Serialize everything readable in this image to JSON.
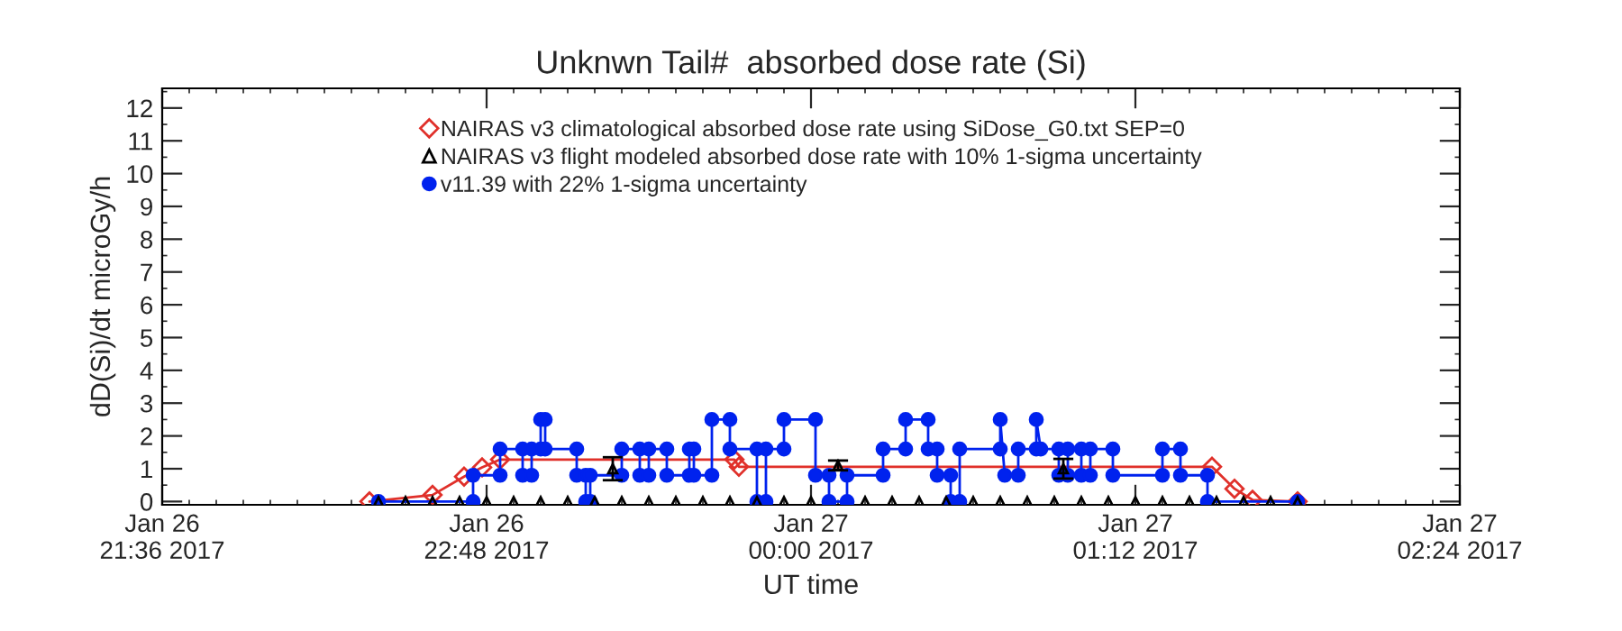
{
  "chart_data": {
    "type": "line",
    "title": "Unknwn Tail#  absorbed dose rate (Si)",
    "xlabel": "UT time",
    "ylabel": "dD(Si)/dt microGy/h",
    "xlim": [
      "2017-01-26T21:36",
      "2017-01-27T02:24"
    ],
    "xticks": [
      {
        "value": "2017-01-26T21:36",
        "label": "Jan 26\n21:36 2017"
      },
      {
        "value": "2017-01-26T22:48",
        "label": "Jan 26\n22:48 2017"
      },
      {
        "value": "2017-01-27T00:00",
        "label": "Jan 27\n00:00 2017"
      },
      {
        "value": "2017-01-27T01:12",
        "label": "Jan 27\n01:12 2017"
      },
      {
        "value": "2017-01-27T02:24",
        "label": "Jan 27\n02:24 2017"
      }
    ],
    "ylim": [
      -0.1,
      12.6
    ],
    "yticks": [
      0,
      1,
      2,
      3,
      4,
      5,
      6,
      7,
      8,
      9,
      10,
      11,
      12
    ],
    "grid": false,
    "legend": "top",
    "series": [
      {
        "name": "NAIRAS v3 climatological absorbed dose rate using SiDose_G0.txt SEP=0",
        "color": "#e0302a",
        "marker": "diamond",
        "line_style": "solid",
        "x": [
          "2017-01-26T22:22",
          "2017-01-26T22:36",
          "2017-01-26T22:43",
          "2017-01-26T22:47",
          "2017-01-26T22:51",
          "2017-01-26T23:43",
          "2017-01-26T23:44",
          "2017-01-27T01:29",
          "2017-01-27T01:34",
          "2017-01-27T01:38",
          "2017-01-27T01:48"
        ],
        "values": [
          0,
          0.2,
          0.76,
          1.04,
          1.28,
          1.28,
          1.06,
          1.06,
          0.39,
          0.05,
          0
        ]
      },
      {
        "name": "NAIRAS v3 flight modeled absorbed dose rate with 10% 1-sigma uncertainty",
        "color": "#000000",
        "marker": "triangle",
        "type": "scatter",
        "x": [
          "2017-01-26T22:24",
          "2017-01-26T22:30",
          "2017-01-26T22:36",
          "2017-01-26T22:42",
          "2017-01-26T22:48",
          "2017-01-26T22:54",
          "2017-01-26T23:00",
          "2017-01-26T23:06",
          "2017-01-26T23:12",
          "2017-01-26T23:16",
          "2017-01-26T23:18",
          "2017-01-26T23:24",
          "2017-01-26T23:30",
          "2017-01-26T23:36",
          "2017-01-26T23:42",
          "2017-01-26T23:48",
          "2017-01-26T23:54",
          "2017-01-27T00:00",
          "2017-01-27T00:06",
          "2017-01-27T00:12",
          "2017-01-27T00:18",
          "2017-01-27T00:24",
          "2017-01-27T00:30",
          "2017-01-27T00:36",
          "2017-01-27T00:42",
          "2017-01-27T00:48",
          "2017-01-27T00:54",
          "2017-01-27T00:56",
          "2017-01-27T01:00",
          "2017-01-27T01:06",
          "2017-01-27T01:12",
          "2017-01-27T01:18",
          "2017-01-27T01:24",
          "2017-01-27T01:30",
          "2017-01-27T01:36",
          "2017-01-27T01:42",
          "2017-01-27T01:48"
        ],
        "values": [
          0,
          0,
          0,
          0,
          0,
          0,
          0,
          0,
          0,
          1.0,
          0,
          0,
          0,
          0,
          0,
          0,
          0,
          0,
          1.1,
          0,
          0,
          0,
          0,
          0,
          0,
          0,
          0,
          1.0,
          0,
          0,
          0,
          0,
          0,
          0,
          0,
          0,
          0
        ],
        "errors": [
          null,
          null,
          null,
          null,
          null,
          null,
          null,
          null,
          null,
          0.35,
          null,
          null,
          null,
          null,
          null,
          null,
          null,
          null,
          0.15,
          null,
          null,
          null,
          null,
          null,
          null,
          null,
          null,
          0.3,
          null,
          null,
          null,
          null,
          null,
          null,
          null,
          null,
          null
        ]
      },
      {
        "name": "v11.39 with 22% 1-sigma uncertainty",
        "color": "#0022ee",
        "marker": "circle",
        "line_style": "solid",
        "x": [
          "2017-01-26T22:24",
          "2017-01-26T22:45",
          "2017-01-26T22:45",
          "2017-01-26T22:51",
          "2017-01-26T22:51",
          "2017-01-26T22:56",
          "2017-01-26T22:56",
          "2017-01-26T22:58",
          "2017-01-26T22:58",
          "2017-01-26T23:00",
          "2017-01-26T23:00",
          "2017-01-26T23:01",
          "2017-01-26T23:01",
          "2017-01-26T23:08",
          "2017-01-26T23:08",
          "2017-01-26T23:10",
          "2017-01-26T23:10",
          "2017-01-26T23:11",
          "2017-01-26T23:11",
          "2017-01-26T23:18",
          "2017-01-26T23:18",
          "2017-01-26T23:22",
          "2017-01-26T23:22",
          "2017-01-26T23:24",
          "2017-01-26T23:24",
          "2017-01-26T23:28",
          "2017-01-26T23:28",
          "2017-01-26T23:33",
          "2017-01-26T23:33",
          "2017-01-26T23:34",
          "2017-01-26T23:34",
          "2017-01-26T23:38",
          "2017-01-26T23:38",
          "2017-01-26T23:42",
          "2017-01-26T23:42",
          "2017-01-26T23:48",
          "2017-01-26T23:48",
          "2017-01-26T23:50",
          "2017-01-26T23:50",
          "2017-01-26T23:54",
          "2017-01-26T23:54",
          "2017-01-27T00:01",
          "2017-01-27T00:01",
          "2017-01-27T00:04",
          "2017-01-27T00:04",
          "2017-01-27T00:08",
          "2017-01-27T00:08",
          "2017-01-27T00:16",
          "2017-01-27T00:16",
          "2017-01-27T00:21",
          "2017-01-27T00:21",
          "2017-01-27T00:26",
          "2017-01-27T00:26",
          "2017-01-27T00:28",
          "2017-01-27T00:28",
          "2017-01-27T00:31",
          "2017-01-27T00:31",
          "2017-01-27T00:33",
          "2017-01-27T00:33",
          "2017-01-27T00:42",
          "2017-01-27T00:42",
          "2017-01-27T00:43",
          "2017-01-27T00:46",
          "2017-01-27T00:46",
          "2017-01-27T00:50",
          "2017-01-27T00:50",
          "2017-01-27T00:51",
          "2017-01-27T00:55",
          "2017-01-27T00:55",
          "2017-01-27T00:57",
          "2017-01-27T00:57",
          "2017-01-27T01:00",
          "2017-01-27T01:00",
          "2017-01-27T01:02",
          "2017-01-27T01:02",
          "2017-01-27T01:07",
          "2017-01-27T01:07",
          "2017-01-27T01:18",
          "2017-01-27T01:18",
          "2017-01-27T01:22",
          "2017-01-27T01:22",
          "2017-01-27T01:28",
          "2017-01-27T01:28",
          "2017-01-27T01:48"
        ],
        "values": [
          0,
          0,
          0.8,
          0.8,
          1.6,
          1.6,
          0.8,
          0.8,
          1.6,
          1.6,
          2.5,
          2.5,
          1.6,
          1.6,
          0.8,
          0.8,
          0,
          0,
          0.8,
          0.8,
          1.6,
          1.6,
          0.8,
          0.8,
          1.6,
          1.6,
          0.8,
          0.8,
          1.6,
          1.6,
          0.8,
          0.8,
          2.5,
          2.5,
          1.6,
          1.6,
          0,
          0,
          1.6,
          1.6,
          2.5,
          2.5,
          0.8,
          0.8,
          0,
          0,
          0.8,
          0.8,
          1.6,
          1.6,
          2.5,
          2.5,
          1.6,
          1.6,
          0.8,
          0.8,
          0,
          0,
          1.6,
          1.6,
          2.5,
          0.8,
          0.8,
          1.6,
          1.6,
          2.5,
          1.6,
          1.6,
          0.8,
          0.8,
          1.6,
          1.6,
          0.8,
          0.8,
          1.6,
          1.6,
          0.8,
          0.8,
          1.6,
          1.6,
          0.8,
          0.8,
          0,
          0
        ]
      }
    ]
  }
}
